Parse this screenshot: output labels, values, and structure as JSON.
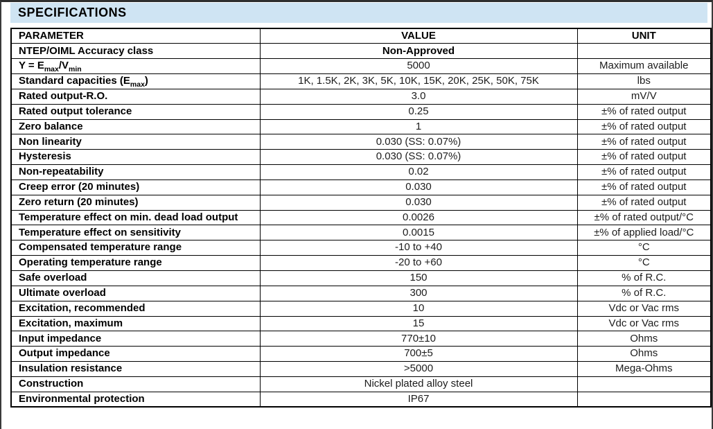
{
  "page": {
    "title": "SPECIFICATIONS"
  },
  "colors": {
    "title_band_bg": "#cfe4f3",
    "border": "#000000",
    "page_bg": "#ffffff"
  },
  "table": {
    "columns": [
      {
        "key": "parameter",
        "label": "PARAMETER"
      },
      {
        "key": "value",
        "label": "VALUE"
      },
      {
        "key": "unit",
        "label": "UNIT"
      }
    ],
    "rows": [
      {
        "parameter": "NTEP/OIML Accuracy class",
        "value": "Non-Approved",
        "value_bold": true,
        "unit": ""
      },
      {
        "parameter": "Y = E[sub]max[/sub]/V[sub]min[/sub]",
        "value": "5000",
        "unit": "Maximum available"
      },
      {
        "parameter": "Standard capacities (E[sub]max[/sub])",
        "value": "1K, 1.5K, 2K, 3K, 5K, 10K, 15K, 20K, 25K, 50K, 75K",
        "unit": "lbs"
      },
      {
        "parameter": "Rated output-R.O.",
        "value": "3.0",
        "unit": "mV/V"
      },
      {
        "parameter": "Rated output tolerance",
        "value": "0.25",
        "unit": "±% of rated output"
      },
      {
        "parameter": "Zero balance",
        "value": "1",
        "unit": "±% of rated output"
      },
      {
        "parameter": "Non linearity",
        "value": "0.030 (SS: 0.07%)",
        "unit": "±% of rated output"
      },
      {
        "parameter": "Hysteresis",
        "value": "0.030 (SS: 0.07%)",
        "unit": "±% of rated output"
      },
      {
        "parameter": "Non-repeatability",
        "value": "0.02",
        "unit": "±% of rated output"
      },
      {
        "parameter": "Creep error (20 minutes)",
        "value": "0.030",
        "unit": "±% of rated output"
      },
      {
        "parameter": "Zero return (20 minutes)",
        "value": "0.030",
        "unit": "±% of rated output"
      },
      {
        "parameter": "Temperature effect on min. dead load output",
        "value": "0.0026",
        "unit": "±% of rated output/°C"
      },
      {
        "parameter": "Temperature effect on sensitivity",
        "value": "0.0015",
        "unit": "±% of applied load/°C"
      },
      {
        "parameter": "Compensated temperature range",
        "value": "-10 to +40",
        "unit": "°C"
      },
      {
        "parameter": "Operating temperature range",
        "value": "-20 to +60",
        "unit": "°C"
      },
      {
        "parameter": "Safe overload",
        "value": "150",
        "unit": "% of R.C."
      },
      {
        "parameter": "Ultimate overload",
        "value": "300",
        "unit": "% of R.C."
      },
      {
        "parameter": "Excitation, recommended",
        "value": "10",
        "unit": "Vdc or Vac rms"
      },
      {
        "parameter": "Excitation, maximum",
        "value": "15",
        "unit": "Vdc or Vac rms"
      },
      {
        "parameter": "Input impedance",
        "value": "770±10",
        "unit": "Ohms"
      },
      {
        "parameter": "Output impedance",
        "value": "700±5",
        "unit": "Ohms"
      },
      {
        "parameter": "Insulation resistance",
        "value": ">5000",
        "unit": "Mega-Ohms"
      },
      {
        "parameter": "Construction",
        "value": "Nickel plated alloy steel",
        "unit": ""
      },
      {
        "parameter": "Environmental protection",
        "value": "IP67",
        "unit": ""
      }
    ]
  }
}
